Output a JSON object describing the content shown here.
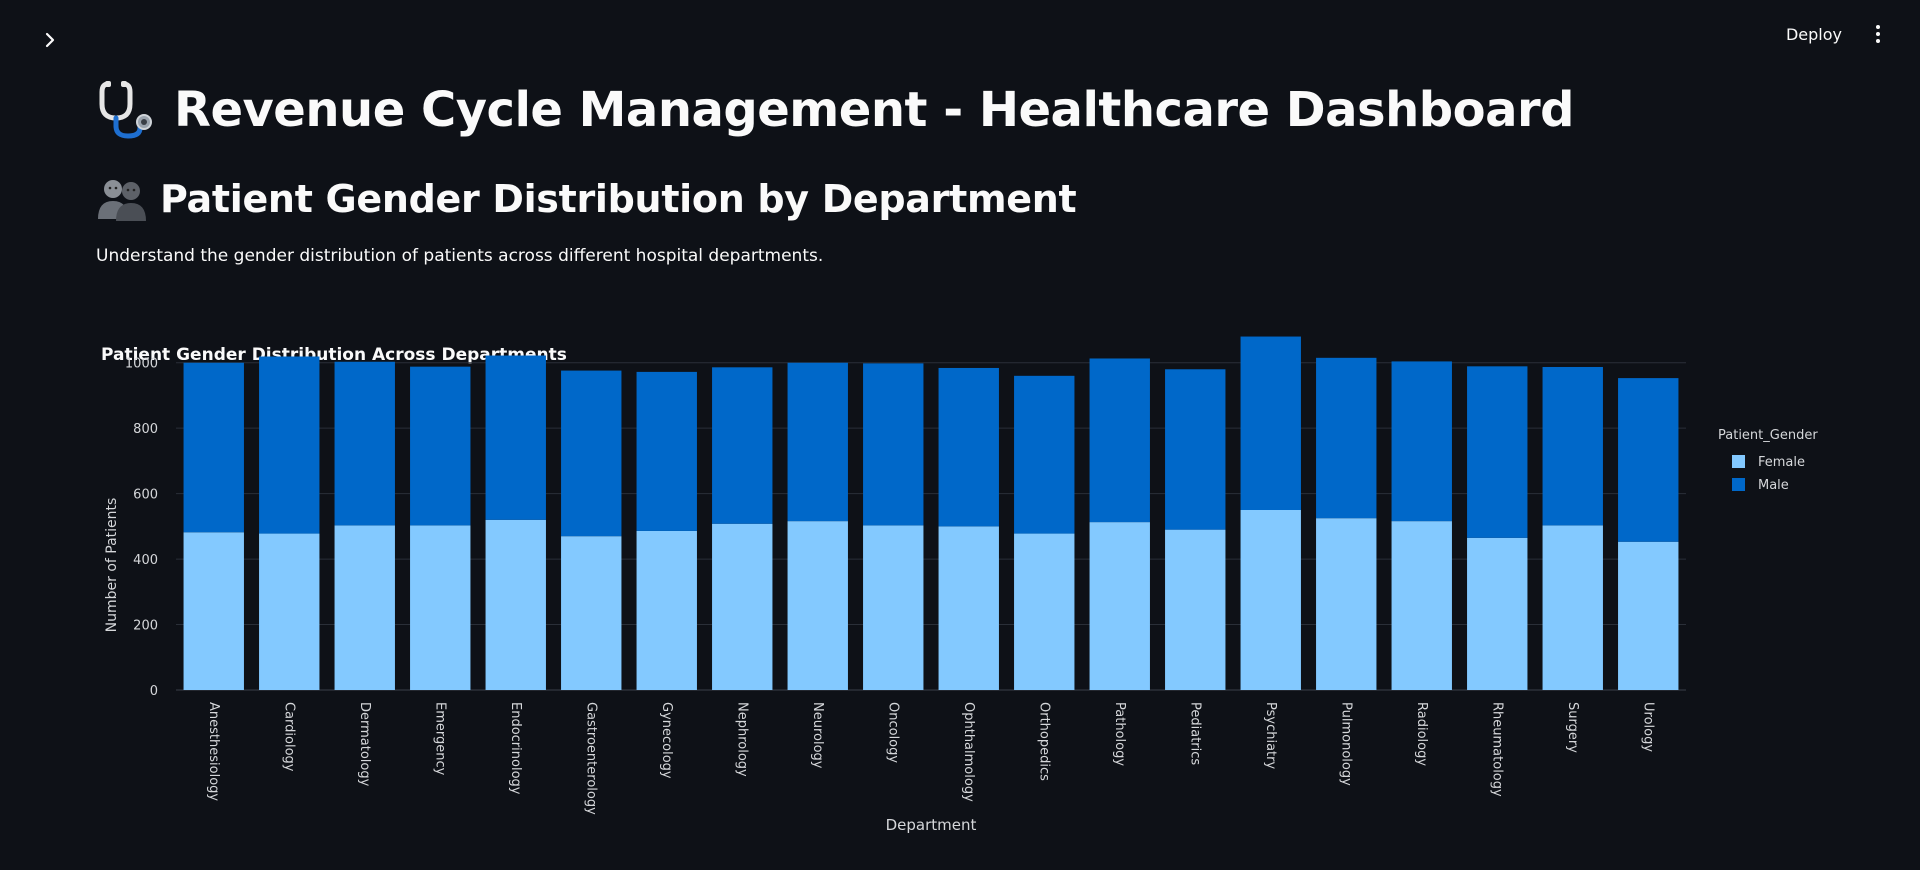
{
  "header": {
    "deploy_label": "Deploy"
  },
  "page": {
    "title": "Revenue Cycle Management - Healthcare Dashboard",
    "section_title": "Patient Gender Distribution by Department",
    "description": "Understand the gender distribution of patients across different hospital departments."
  },
  "icons": {
    "sidebar_toggle": "chevron-right-icon",
    "title_emoji": "stethoscope-icon",
    "section_emoji": "people-icon",
    "menu": "vertical-dots-icon"
  },
  "colors": {
    "background": "#0e1117",
    "female": "#83c9ff",
    "male": "#0068c9"
  },
  "chart_data": {
    "type": "bar",
    "stacked": true,
    "title": "Patient Gender Distribution Across Departments",
    "xlabel": "Department",
    "ylabel": "Number of Patients",
    "ylim": [
      0,
      1100
    ],
    "yticks": [
      0,
      200,
      400,
      600,
      800,
      1000
    ],
    "legend_title": "Patient_Gender",
    "legend_position": "top-right",
    "categories": [
      "Anesthesiology",
      "Cardiology",
      "Dermatology",
      "Emergency",
      "Endocrinology",
      "Gastroenterology",
      "Gynecology",
      "Nephrology",
      "Neurology",
      "Oncology",
      "Ophthalmology",
      "Orthopedics",
      "Pathology",
      "Pediatrics",
      "Psychiatry",
      "Pulmonology",
      "Radiology",
      "Rheumatology",
      "Surgery",
      "Urology"
    ],
    "series": [
      {
        "name": "Female",
        "color": "#83c9ff",
        "values": [
          482,
          478,
          503,
          503,
          520,
          470,
          486,
          508,
          516,
          503,
          500,
          478,
          513,
          490,
          550,
          525,
          516,
          465,
          503,
          453
        ]
      },
      {
        "name": "Male",
        "color": "#0068c9",
        "values": [
          518,
          541,
          500,
          485,
          502,
          506,
          486,
          478,
          484,
          495,
          484,
          482,
          500,
          490,
          530,
          490,
          488,
          524,
          484,
          500
        ]
      }
    ]
  }
}
